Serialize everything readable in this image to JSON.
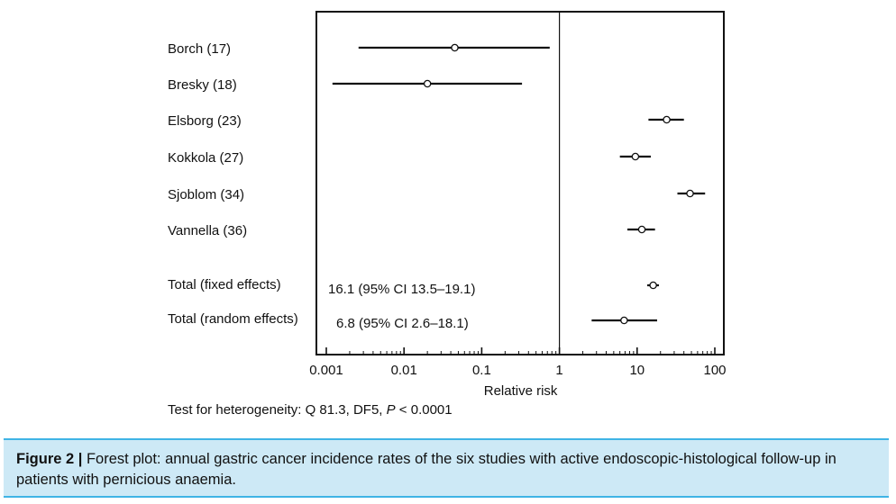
{
  "chart_data": {
    "type": "forest",
    "xlabel": "Relative risk",
    "x_scale": "log",
    "xlim": [
      0.001,
      100
    ],
    "x_ticks": [
      {
        "value": 0.001,
        "label": "0.001"
      },
      {
        "value": 0.01,
        "label": "0.01"
      },
      {
        "value": 0.1,
        "label": "0.1"
      },
      {
        "value": 1,
        "label": "1"
      },
      {
        "value": 10,
        "label": "10"
      },
      {
        "value": 100,
        "label": "100"
      }
    ],
    "reference_line": 1,
    "studies": [
      {
        "label": "Borch (17)",
        "estimate": 0.045,
        "lower": 0.0026,
        "upper": 0.75
      },
      {
        "label": "Bresky (18)",
        "estimate": 0.02,
        "lower": 0.0012,
        "upper": 0.33
      },
      {
        "label": "Elsborg (23)",
        "estimate": 24,
        "lower": 14,
        "upper": 40
      },
      {
        "label": "Kokkola (27)",
        "estimate": 9.5,
        "lower": 6,
        "upper": 15
      },
      {
        "label": "Sjoblom (34)",
        "estimate": 48,
        "lower": 33,
        "upper": 75
      },
      {
        "label": "Vannella (36)",
        "estimate": 11.5,
        "lower": 7.5,
        "upper": 17
      }
    ],
    "totals": [
      {
        "label": "Total (fixed effects)",
        "annotation": "16.1 (95% CI 13.5–19.1)",
        "estimate": 16.1,
        "lower": 13.5,
        "upper": 19.1
      },
      {
        "label": "Total (random effects)",
        "annotation": "6.8 (95% CI 2.6–18.1)",
        "estimate": 6.8,
        "lower": 2.6,
        "upper": 18.1
      }
    ]
  },
  "heterogeneity": {
    "prefix": "Test for heterogeneity: Q 81.3, DF5, ",
    "p_symbol": "P",
    "p_value": " < 0.0001"
  },
  "caption": {
    "label": "Figure 2 |",
    "text": " Forest plot: annual gastric cancer incidence rates of the six studies with active endoscopic-histological follow-up in patients with pernicious anaemia."
  }
}
